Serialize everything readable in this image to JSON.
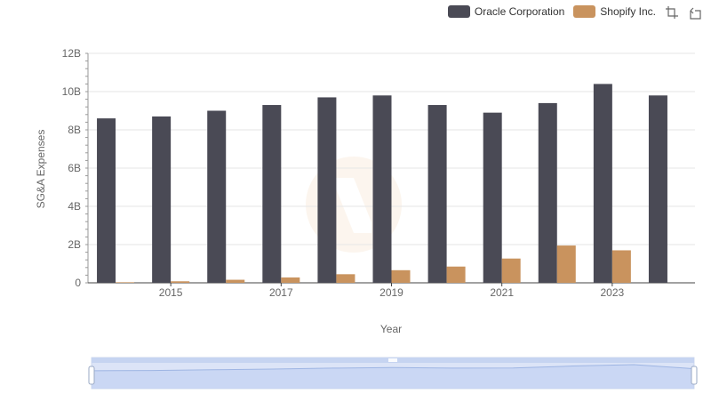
{
  "legend": {
    "items": [
      {
        "label": "Oracle Corporation",
        "color": "#4a4a55"
      },
      {
        "label": "Shopify Inc.",
        "color": "#c9935e"
      }
    ]
  },
  "toolbox": {
    "zoom_icon": "zoom-icon",
    "restore_icon": "restore-icon"
  },
  "watermark_icon": "logo-watermark",
  "chart_data": {
    "type": "bar",
    "x": [
      2014,
      2015,
      2016,
      2017,
      2018,
      2019,
      2020,
      2021,
      2022,
      2023,
      2024
    ],
    "xticks": [
      "2015",
      "2017",
      "2019",
      "2021",
      "2023"
    ],
    "xlabel": "Year",
    "ylabel": "SG&A Expenses",
    "ylim": [
      0,
      12000000000
    ],
    "yticks": [
      "0",
      "2B",
      "4B",
      "6B",
      "8B",
      "10B",
      "12B"
    ],
    "grid": true,
    "legend_position": "top-right",
    "series": [
      {
        "name": "Oracle Corporation",
        "color": "#4a4a55",
        "values": [
          8600000000,
          8700000000,
          9000000000,
          9300000000,
          9700000000,
          9800000000,
          9300000000,
          8900000000,
          9400000000,
          10400000000,
          9800000000
        ]
      },
      {
        "name": "Shopify Inc.",
        "color": "#c9935e",
        "values": [
          30000000,
          80000000,
          160000000,
          280000000,
          450000000,
          660000000,
          850000000,
          1270000000,
          1950000000,
          1700000000,
          0
        ]
      }
    ],
    "data_zoom": {
      "range_percent": [
        0,
        100
      ]
    }
  }
}
